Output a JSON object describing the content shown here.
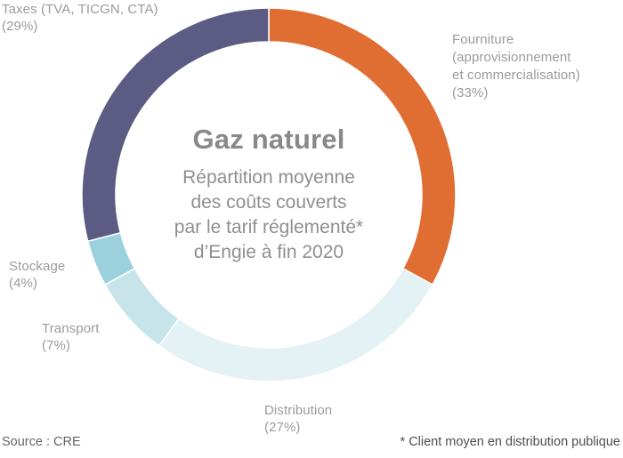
{
  "chart_data": {
    "type": "pie",
    "donut": true,
    "title": "Gaz naturel",
    "subtitle_lines": [
      "Répartition moyenne",
      "des coûts couverts",
      "par le tarif réglementé*",
      "d’Engie à fin 2020"
    ],
    "start_angle_deg": 0,
    "direction": "clockwise",
    "legend_position": "callouts-around-ring",
    "segments": [
      {
        "id": "fourniture",
        "label": "Fourniture (approvisionnement et commercialisation)",
        "value": 33,
        "color": "#e06e32"
      },
      {
        "id": "distribution",
        "label": "Distribution",
        "value": 27,
        "color": "#e4f2f6"
      },
      {
        "id": "transport",
        "label": "Transport",
        "value": 7,
        "color": "#c7e4eb"
      },
      {
        "id": "stockage",
        "label": "Stockage",
        "value": 4,
        "color": "#9bd0dd"
      },
      {
        "id": "taxes",
        "label": "Taxes (TVA, TICGN, CTA)",
        "value": 29,
        "color": "#5c5b83"
      }
    ]
  },
  "callouts": {
    "taxes": {
      "lines": [
        "Taxes (TVA, TICGN, CTA)",
        "(29%)"
      ]
    },
    "fourniture": {
      "lines": [
        "Fourniture",
        "(approvisionnement",
        "et commercialisation)",
        "(33%)"
      ]
    },
    "stockage": {
      "lines": [
        "Stockage",
        "(4%)"
      ]
    },
    "transport": {
      "lines": [
        "Transport",
        "(7%)"
      ]
    },
    "distribution": {
      "lines": [
        "Distribution",
        "(27%)"
      ]
    }
  },
  "footer": {
    "source": "Source : CRE",
    "footnote": "* Client moyen en distribution publique"
  }
}
